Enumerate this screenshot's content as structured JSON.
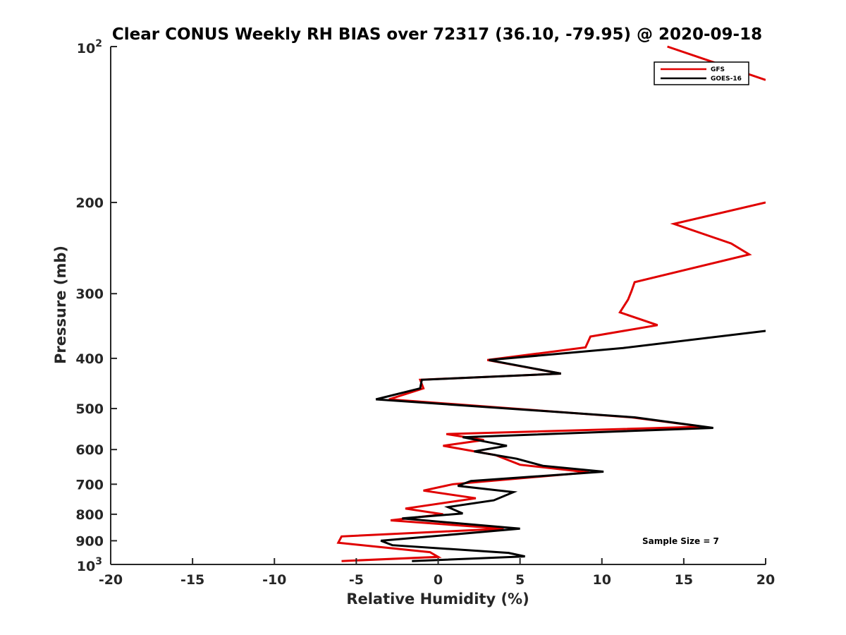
{
  "chart_data": {
    "type": "line",
    "title": "Clear CONUS Weekly RH BIAS over 72317 (36.10, -79.95) @ 2020-09-18",
    "xlabel": "Relative Humidity (%)",
    "ylabel": "Pressure (mb)",
    "xlim": [
      -20,
      20
    ],
    "ylim": [
      100,
      1000
    ],
    "y_scale": "log",
    "y_reversed": true,
    "grid": false,
    "legend_position": "top-right",
    "x_ticks": [
      "-20",
      "-15",
      "-10",
      "-5",
      "0",
      "5",
      "10",
      "15",
      "20"
    ],
    "y_ticks": [
      {
        "base": "10",
        "exp": "2",
        "label": ""
      },
      {
        "base": "",
        "exp": "",
        "label": "200"
      },
      {
        "base": "",
        "exp": "",
        "label": "300"
      },
      {
        "base": "",
        "exp": "",
        "label": "400"
      },
      {
        "base": "",
        "exp": "",
        "label": "500"
      },
      {
        "base": "",
        "exp": "",
        "label": "600"
      },
      {
        "base": "",
        "exp": "",
        "label": "700"
      },
      {
        "base": "",
        "exp": "",
        "label": "800"
      },
      {
        "base": "",
        "exp": "",
        "label": "900"
      },
      {
        "base": "10",
        "exp": "3",
        "label": ""
      }
    ],
    "annotation": "Sample Size = 7",
    "series": [
      {
        "name": "GFS",
        "color": "#e00000",
        "points": [
          [
            -5.9,
            985
          ],
          [
            0.0,
            967
          ],
          [
            -0.5,
            947
          ],
          [
            -6.1,
            908
          ],
          [
            -5.9,
            883
          ],
          [
            4.0,
            853
          ],
          [
            -2.9,
            822
          ],
          [
            0.3,
            800
          ],
          [
            -2.0,
            780
          ],
          [
            2.3,
            745
          ],
          [
            -0.9,
            720
          ],
          [
            0.9,
            700
          ],
          [
            9.2,
            664
          ],
          [
            5.0,
            642
          ],
          [
            3.5,
            615
          ],
          [
            0.3,
            590
          ],
          [
            2.8,
            575
          ],
          [
            0.5,
            560
          ],
          [
            16.2,
            542
          ],
          [
            11.8,
            520
          ],
          [
            -3.0,
            480
          ],
          [
            -0.9,
            457
          ],
          [
            -1.1,
            440
          ],
          [
            7.5,
            428
          ],
          [
            3.0,
            403
          ],
          [
            9.0,
            381
          ],
          [
            9.3,
            363
          ],
          [
            13.4,
            345
          ],
          [
            11.1,
            326
          ],
          [
            11.6,
            308
          ],
          [
            11.8,
            297
          ],
          [
            12.0,
            285
          ],
          [
            19.0,
            252
          ],
          [
            17.9,
            240
          ],
          [
            14.4,
            220
          ],
          [
            20.0,
            200
          ]
        ],
        "points_upper": [
          [
            14.0,
            100
          ],
          [
            20.0,
            116
          ]
        ]
      },
      {
        "name": "GOES-16",
        "color": "#000000",
        "points": [
          [
            -1.6,
            985
          ],
          [
            5.3,
            965
          ],
          [
            4.3,
            950
          ],
          [
            -2.8,
            918
          ],
          [
            -3.5,
            900
          ],
          [
            5.0,
            853
          ],
          [
            -2.2,
            815
          ],
          [
            1.5,
            797
          ],
          [
            0.6,
            775
          ],
          [
            3.4,
            752
          ],
          [
            4.6,
            725
          ],
          [
            1.2,
            705
          ],
          [
            2.0,
            690
          ],
          [
            10.1,
            662
          ],
          [
            6.4,
            645
          ],
          [
            4.8,
            625
          ],
          [
            2.2,
            605
          ],
          [
            4.2,
            590
          ],
          [
            1.5,
            568
          ],
          [
            16.8,
            545
          ],
          [
            12.0,
            520
          ],
          [
            -3.8,
            480
          ],
          [
            -1.1,
            457
          ],
          [
            -1.0,
            440
          ],
          [
            7.5,
            428
          ],
          [
            3.1,
            403
          ],
          [
            11.3,
            382
          ],
          [
            20.0,
            354
          ]
        ]
      }
    ]
  }
}
